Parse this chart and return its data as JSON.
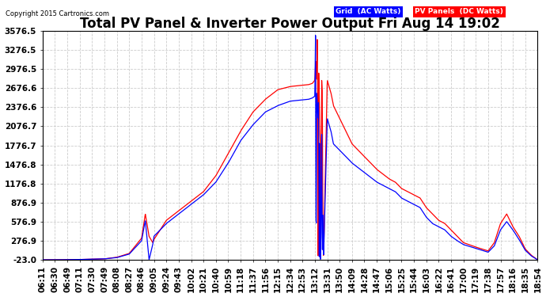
{
  "title": "Total PV Panel & Inverter Power Output Fri Aug 14 19:02",
  "copyright": "Copyright 2015 Cartronics.com",
  "legend_items": [
    {
      "label": "Grid  (AC Watts)",
      "color": "#0000ff"
    },
    {
      "label": "PV Panels  (DC Watts)",
      "color": "#ff0000"
    }
  ],
  "grid_color": "#cccccc",
  "background_color": "#ffffff",
  "line_color_blue": "#0000ff",
  "line_color_red": "#ff0000",
  "ytick_labels": [
    "-23.0",
    "276.9",
    "576.9",
    "876.9",
    "1176.8",
    "1476.8",
    "1776.7",
    "2076.7",
    "2376.6",
    "2676.6",
    "2976.5",
    "3276.5",
    "3576.5"
  ],
  "yticks": [
    -23.0,
    276.9,
    576.9,
    876.9,
    1176.8,
    1476.8,
    1776.7,
    2076.7,
    2376.6,
    2676.6,
    2976.5,
    3276.5,
    3576.5
  ],
  "ylim": [
    -23.0,
    3576.5
  ],
  "title_fontsize": 12,
  "axis_fontsize": 7.5,
  "xtick_labels": [
    "06:11",
    "06:30",
    "06:49",
    "07:11",
    "07:30",
    "07:49",
    "08:08",
    "08:27",
    "08:46",
    "09:05",
    "09:24",
    "09:43",
    "10:02",
    "10:21",
    "10:40",
    "10:59",
    "11:18",
    "11:37",
    "11:56",
    "12:15",
    "12:34",
    "12:53",
    "13:12",
    "13:31",
    "13:50",
    "14:09",
    "14:28",
    "14:47",
    "15:06",
    "15:25",
    "15:44",
    "16:03",
    "16:22",
    "16:41",
    "17:00",
    "17:19",
    "17:38",
    "17:57",
    "18:16",
    "18:35",
    "18:54"
  ]
}
